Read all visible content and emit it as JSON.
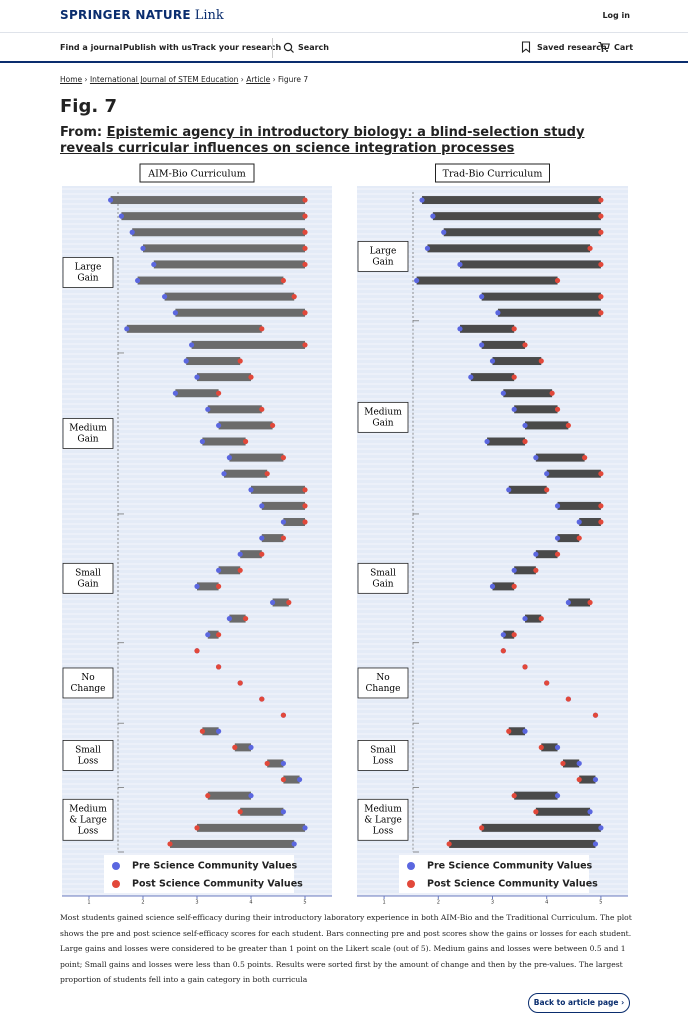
{
  "header": {
    "brand": "SPRINGER NATURE",
    "brand_suffix": "Link",
    "login": "Log in"
  },
  "nav": {
    "items": [
      "Find a journal",
      "Publish with us",
      "Track your research"
    ],
    "search": "Search",
    "saved": "Saved research",
    "cart": "Cart"
  },
  "breadcrumb": [
    "Home",
    "International Journal of STEM Education",
    "Article",
    "Figure 7"
  ],
  "figure": {
    "label": "Fig. 7",
    "from": "From:",
    "article_title": "Epistemic agency in introductory biology: a blind-selection study reveals curricular influences on science integration processes",
    "caption": "Most students gained science self-efficacy during their introductory laboratory experience in both AIM-Bio and the Traditional Curriculum. The plot shows the pre and post science self-efficacy scores for each student. Bars connecting pre and post scores show the gains or losses for each student. Large gains and losses were considered to be greater than 1 point on the Likert scale (out of 5). Medium gains and losses were between 0.5 and 1 point; Small gains and losses were less than 0.5 points. Results were sorted first by the amount of change and then by the pre-values. The largest proportion of students fell into a gain category in both curricula"
  },
  "back_button": "Back to article page",
  "chart_data": [
    {
      "type": "dumbbell",
      "title": "AIM-Bio Curriculum",
      "xlim": [
        0.5,
        5.5
      ],
      "xticks": [
        1,
        2,
        3,
        4,
        5
      ],
      "bar_color": "#6b6b6b",
      "legend": [
        {
          "name": "Pre Science Community Values",
          "color": "#5b67e0"
        },
        {
          "name": "Post Science Community Values",
          "color": "#e2483a"
        }
      ],
      "groups": [
        {
          "label": [
            "Large",
            "Gain"
          ],
          "pre": [
            1.4,
            1.6,
            1.8,
            2.0,
            2.2,
            1.9,
            2.4,
            2.6,
            1.7,
            2.9
          ],
          "post": [
            5.0,
            5.0,
            5.0,
            5.0,
            5.0,
            4.6,
            4.8,
            5.0,
            4.2,
            5.0
          ]
        },
        {
          "label": [
            "Medium",
            "Gain"
          ],
          "pre": [
            2.8,
            3.0,
            2.6,
            3.2,
            3.4,
            3.1,
            3.6,
            3.5,
            4.0,
            4.2
          ],
          "post": [
            3.8,
            4.0,
            3.4,
            4.2,
            4.4,
            3.9,
            4.6,
            4.3,
            5.0,
            5.0
          ]
        },
        {
          "label": [
            "Small",
            "Gain"
          ],
          "pre": [
            4.6,
            4.2,
            3.8,
            3.4,
            3.0,
            4.4,
            3.6,
            3.2
          ],
          "post": [
            5.0,
            4.6,
            4.2,
            3.8,
            3.4,
            4.7,
            3.9,
            3.4
          ]
        },
        {
          "label": [
            "No",
            "Change"
          ],
          "pre": [
            3.0,
            3.4,
            3.8,
            4.2,
            4.6
          ],
          "post": [
            3.0,
            3.4,
            3.8,
            4.2,
            4.6
          ]
        },
        {
          "label": [
            "Small",
            "Loss"
          ],
          "pre": [
            3.4,
            4.0,
            4.6,
            4.9
          ],
          "post": [
            3.1,
            3.7,
            4.3,
            4.6
          ]
        },
        {
          "label": [
            "Medium",
            "& Large",
            "Loss"
          ],
          "pre": [
            4.0,
            4.6,
            5.0,
            4.8
          ],
          "post": [
            3.2,
            3.8,
            3.0,
            2.5
          ]
        }
      ]
    },
    {
      "type": "dumbbell",
      "title": "Trad-Bio Curriculum",
      "xlim": [
        0.5,
        5.5
      ],
      "xticks": [
        1,
        2,
        3,
        4,
        5
      ],
      "bar_color": "#4a4a4a",
      "legend": [
        {
          "name": "Pre Science Community Values",
          "color": "#5b67e0"
        },
        {
          "name": "Post Science Community Values",
          "color": "#e2483a"
        }
      ],
      "groups": [
        {
          "label": [
            "Large",
            "Gain"
          ],
          "pre": [
            1.7,
            1.9,
            2.1,
            1.8,
            2.4,
            1.6,
            2.8,
            3.1
          ],
          "post": [
            5.0,
            5.0,
            5.0,
            4.8,
            5.0,
            4.2,
            5.0,
            5.0
          ]
        },
        {
          "label": [
            "Medium",
            "Gain"
          ],
          "pre": [
            2.4,
            2.8,
            3.0,
            2.6,
            3.2,
            3.4,
            3.6,
            2.9,
            3.8,
            4.0,
            3.3,
            4.2
          ],
          "post": [
            3.4,
            3.6,
            3.9,
            3.4,
            4.1,
            4.2,
            4.4,
            3.6,
            4.7,
            5.0,
            4.0,
            5.0
          ]
        },
        {
          "label": [
            "Small",
            "Gain"
          ],
          "pre": [
            4.6,
            4.2,
            3.8,
            3.4,
            3.0,
            4.4,
            3.6,
            3.2
          ],
          "post": [
            5.0,
            4.6,
            4.2,
            3.8,
            3.4,
            4.8,
            3.9,
            3.4
          ]
        },
        {
          "label": [
            "No",
            "Change"
          ],
          "pre": [
            3.2,
            3.6,
            4.0,
            4.4,
            4.9
          ],
          "post": [
            3.2,
            3.6,
            4.0,
            4.4,
            4.9
          ]
        },
        {
          "label": [
            "Small",
            "Loss"
          ],
          "pre": [
            3.6,
            4.2,
            4.6,
            4.9
          ],
          "post": [
            3.3,
            3.9,
            4.3,
            4.6
          ]
        },
        {
          "label": [
            "Medium",
            "& Large",
            "Loss"
          ],
          "pre": [
            4.2,
            4.8,
            5.0,
            4.9
          ],
          "post": [
            3.4,
            3.8,
            2.8,
            2.2
          ]
        }
      ]
    }
  ]
}
